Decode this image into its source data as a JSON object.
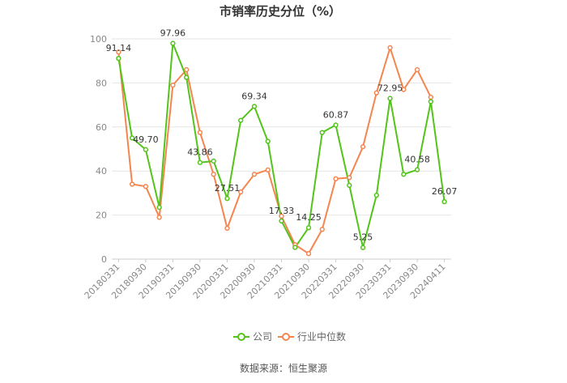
{
  "chart_data": {
    "type": "line",
    "title": "市销率历史分位（%）",
    "source": "数据来源：恒生聚源",
    "xlabel": "",
    "ylabel": "",
    "ylim": [
      0,
      100
    ],
    "yticks": [
      0,
      20,
      40,
      60,
      80,
      100
    ],
    "grid": true,
    "legend_position": "bottom",
    "x_tick_labels": [
      "20180331",
      "20180930",
      "20190331",
      "20190930",
      "20200331",
      "20200930",
      "20210331",
      "20210930",
      "20220331",
      "20220930",
      "20230331",
      "20230930",
      "20240411"
    ],
    "series": [
      {
        "name": "公司",
        "color": "#52c41a",
        "values": [
          91.14,
          55,
          49.7,
          23.5,
          97.96,
          82.5,
          43.86,
          44.5,
          27.51,
          63,
          69.34,
          53.5,
          17.33,
          5.3,
          14.25,
          57.5,
          60.87,
          33.5,
          5.25,
          29,
          72.95,
          38.5,
          40.58,
          71.5,
          26.07
        ],
        "labeled": [
          {
            "index": 0,
            "text": "91.14"
          },
          {
            "index": 2,
            "text": "49.70"
          },
          {
            "index": 4,
            "text": "97.96"
          },
          {
            "index": 6,
            "text": "43.86"
          },
          {
            "index": 8,
            "text": "27.51"
          },
          {
            "index": 10,
            "text": "69.34"
          },
          {
            "index": 12,
            "text": "17.33"
          },
          {
            "index": 14,
            "text": "14.25"
          },
          {
            "index": 16,
            "text": "60.87"
          },
          {
            "index": 18,
            "text": "5.25"
          },
          {
            "index": 20,
            "text": "72.95"
          },
          {
            "index": 22,
            "text": "40.58"
          },
          {
            "index": 24,
            "text": "26.07"
          }
        ]
      },
      {
        "name": "行业中位数",
        "color": "#f5854f",
        "values": [
          94,
          34,
          33,
          19,
          79,
          86,
          57.5,
          38.5,
          14,
          30.5,
          38.5,
          40.5,
          19.5,
          6.5,
          2.5,
          13.5,
          36.5,
          37,
          51,
          75.5,
          96,
          77,
          86,
          73.5
        ]
      }
    ]
  }
}
